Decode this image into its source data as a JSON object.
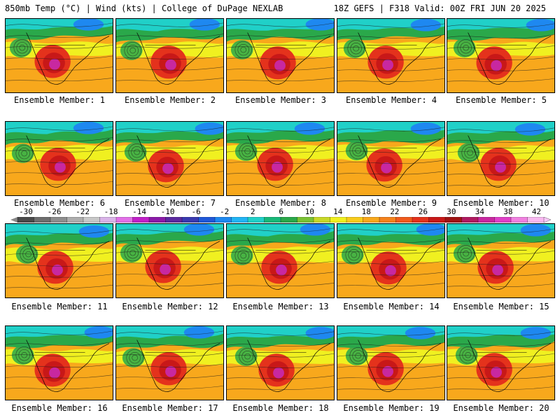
{
  "header": {
    "left_text": "850mb Temp (°C) | Wind (kts) | College of DuPage NEXLAB",
    "right_text": "18Z GEFS | F318 Valid: 00Z FRI JUN 20 2025"
  },
  "panels": [
    {
      "label": "Ensemble Member: 1"
    },
    {
      "label": "Ensemble Member: 2"
    },
    {
      "label": "Ensemble Member: 3"
    },
    {
      "label": "Ensemble Member: 4"
    },
    {
      "label": "Ensemble Member: 5"
    },
    {
      "label": "Ensemble Member: 6"
    },
    {
      "label": "Ensemble Member: 7"
    },
    {
      "label": "Ensemble Member: 8"
    },
    {
      "label": "Ensemble Member: 9"
    },
    {
      "label": "Ensemble Member: 10"
    },
    {
      "label": "Ensemble Member: 11"
    },
    {
      "label": "Ensemble Member: 12"
    },
    {
      "label": "Ensemble Member: 13"
    },
    {
      "label": "Ensemble Member: 14"
    },
    {
      "label": "Ensemble Member: 15"
    },
    {
      "label": "Ensemble Member: 16"
    },
    {
      "label": "Ensemble Member: 17"
    },
    {
      "label": "Ensemble Member: 18"
    },
    {
      "label": "Ensemble Member: 19"
    },
    {
      "label": "Ensemble Member: 20"
    }
  ],
  "colorbar": {
    "labels": [
      "-30",
      "-26",
      "-22",
      "-18",
      "-14",
      "-10",
      "-6",
      "-2",
      "2",
      "6",
      "10",
      "14",
      "18",
      "22",
      "26",
      "30",
      "34",
      "38",
      "42"
    ],
    "colors": [
      "#4a4a4a",
      "#6e6e6e",
      "#8e8e8e",
      "#adadad",
      "#c8c8c8",
      "#d9b3e8",
      "#e270e8",
      "#c020c8",
      "#8a1aa8",
      "#5b2aa0",
      "#3a3ab0",
      "#1f58d8",
      "#1e88f0",
      "#22b4f4",
      "#20d0c8",
      "#18b878",
      "#2aa84a",
      "#7ac234",
      "#c8d828",
      "#f0f020",
      "#f8cc1c",
      "#f8a81c",
      "#f4821c",
      "#f05a1c",
      "#e4321c",
      "#c81818",
      "#a01414",
      "#b01a60",
      "#c828a0",
      "#e040c8",
      "#f080e0",
      "#f8b8f0"
    ]
  },
  "palette": {
    "cold": "#1e88f0",
    "cool": "#22b4f4",
    "teal": "#20d0c8",
    "green": "#2aa84a",
    "yellow": "#f0f020",
    "orange": "#f8a81c",
    "red": "#e4321c",
    "hot": "#c81818",
    "magenta": "#c828a0"
  }
}
